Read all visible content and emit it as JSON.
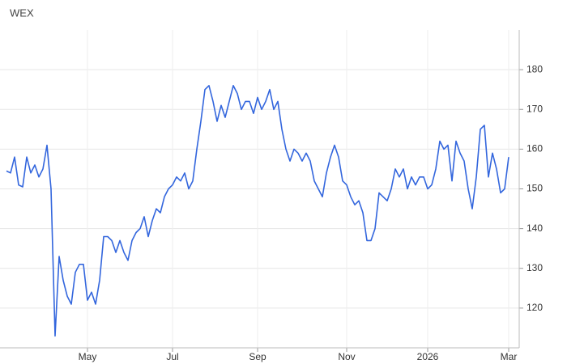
{
  "chart_data": {
    "type": "line",
    "title": "WEX",
    "categories": [
      null,
      null,
      null,
      null,
      null,
      null,
      null,
      null,
      null,
      null,
      null,
      null,
      null,
      null,
      null,
      null,
      null,
      null,
      null,
      null,
      "May",
      null,
      null,
      null,
      null,
      null,
      null,
      null,
      null,
      null,
      null,
      null,
      null,
      null,
      null,
      null,
      null,
      null,
      null,
      null,
      null,
      "Jul",
      null,
      null,
      null,
      null,
      null,
      null,
      null,
      null,
      null,
      null,
      null,
      null,
      null,
      null,
      null,
      null,
      null,
      null,
      null,
      null,
      "Sep",
      null,
      null,
      null,
      null,
      null,
      null,
      null,
      null,
      null,
      null,
      null,
      null,
      null,
      null,
      null,
      null,
      null,
      null,
      null,
      null,
      null,
      "Nov",
      null,
      null,
      null,
      null,
      null,
      null,
      null,
      null,
      null,
      null,
      null,
      null,
      null,
      null,
      null,
      null,
      null,
      null,
      null,
      "2026",
      null,
      null,
      null,
      null,
      null,
      null,
      null,
      null,
      null,
      null,
      null,
      null,
      null,
      null,
      null,
      null,
      null,
      null,
      null,
      "Mar"
    ],
    "series": [
      {
        "name": "WEX",
        "color": "#3366dd",
        "values": [
          154.5,
          154,
          158,
          151,
          150.5,
          158,
          154,
          156,
          153,
          155,
          161,
          150,
          113,
          133,
          127,
          123,
          121,
          129,
          131,
          131,
          122,
          124,
          121,
          127,
          138,
          138,
          137,
          134,
          137,
          134,
          132,
          137,
          139,
          140,
          143,
          138,
          142,
          145,
          144,
          148,
          150,
          151,
          153,
          152,
          154,
          150,
          152,
          160,
          167,
          175,
          176,
          172,
          167,
          171,
          168,
          172,
          176,
          174,
          170,
          172,
          172,
          169,
          173,
          170,
          172,
          175,
          170,
          172,
          165,
          160,
          157,
          160,
          159,
          157,
          159,
          157,
          152,
          150,
          148,
          154,
          158,
          161,
          158,
          152,
          151,
          148,
          146,
          147,
          144,
          137,
          137,
          140,
          149,
          148,
          147,
          150,
          155,
          153,
          155,
          150,
          153,
          151,
          153,
          153,
          150,
          151,
          155,
          162,
          160,
          161,
          152,
          162,
          159,
          157,
          150,
          145,
          153,
          165,
          166,
          153,
          159,
          155,
          149,
          150,
          158
        ]
      }
    ],
    "ylim": [
      110,
      190
    ],
    "yticks": [
      120,
      130,
      140,
      150,
      160,
      170,
      180
    ],
    "grid": true
  }
}
